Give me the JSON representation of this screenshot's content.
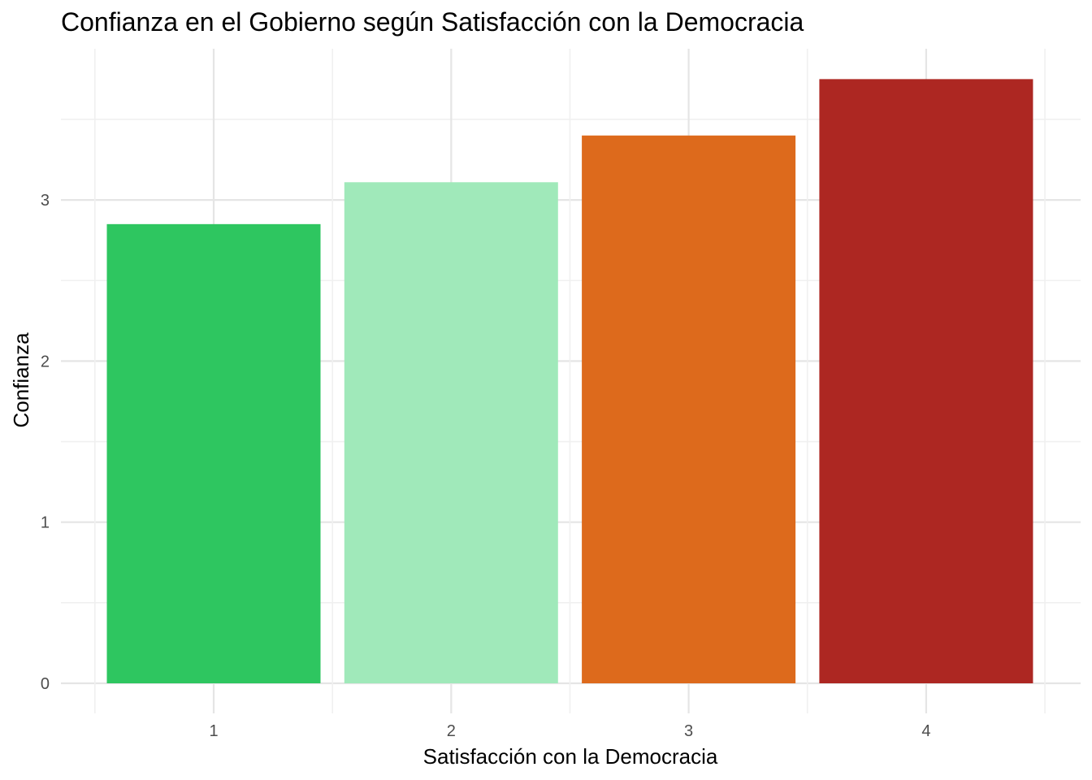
{
  "chart_data": {
    "type": "bar",
    "title": "Confianza en el Gobierno según Satisfacción con la Democracia",
    "xlabel": "Satisfacción con la Democracia",
    "ylabel": "Confianza",
    "categories": [
      "1",
      "2",
      "3",
      "4"
    ],
    "values": [
      2.85,
      3.11,
      3.4,
      3.75
    ],
    "colors": [
      "#2ec660",
      "#a0e9ba",
      "#dd6a1c",
      "#ad2722"
    ],
    "y_ticks": [
      0,
      1,
      2,
      3
    ],
    "y_tick_labels": [
      "0",
      "1",
      "2",
      "3"
    ],
    "ylim": [
      0,
      3.94
    ],
    "grid": true,
    "legend": "none"
  }
}
